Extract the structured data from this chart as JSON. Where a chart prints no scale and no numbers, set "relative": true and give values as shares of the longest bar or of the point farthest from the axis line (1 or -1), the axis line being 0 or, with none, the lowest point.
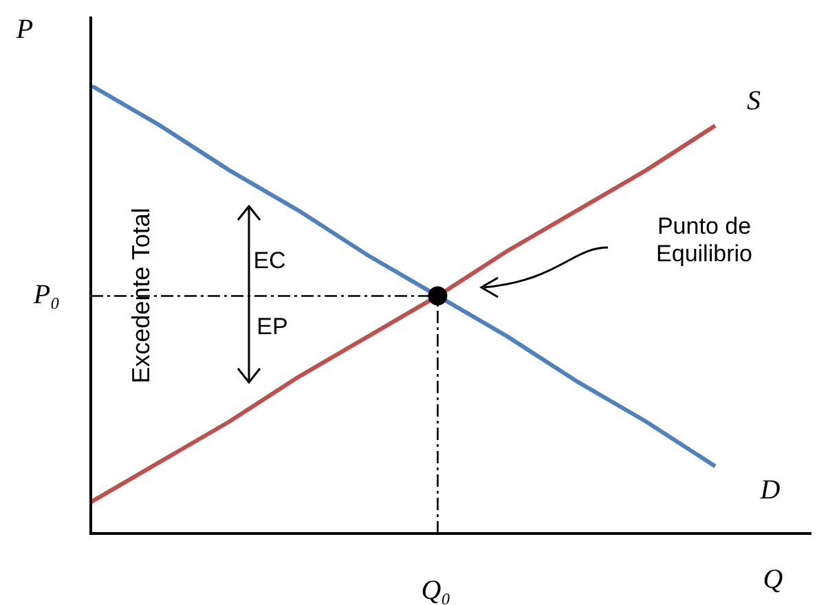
{
  "chart_data": {
    "type": "line",
    "xlabel": "Q",
    "ylabel": "P",
    "relative": true,
    "tick_labels": false,
    "categories": [
      null,
      null,
      null,
      null,
      null,
      null,
      null,
      null,
      null,
      null
    ],
    "series": [
      {
        "name": "D",
        "color": "#4f81bd",
        "values": [
          1,
          0.91,
          0.81,
          0.72,
          0.62,
          0.53,
          0.44,
          0.34,
          0.25,
          0.15
        ]
      },
      {
        "name": "S",
        "color": "#c0504d",
        "values": [
          0.07,
          0.16,
          0.25,
          0.35,
          0.44,
          0.53,
          0.63,
          0.72,
          0.81,
          0.91
        ]
      }
    ],
    "ref_lines": [
      {
        "axis": "y",
        "value": 0.53,
        "label": "P₀",
        "color": "#000000",
        "line_style": "dashed"
      }
    ],
    "annotations": [
      "Excedente Total",
      "EC",
      "EP",
      "Punto de\nEquilibrio",
      "Q₀"
    ]
  }
}
